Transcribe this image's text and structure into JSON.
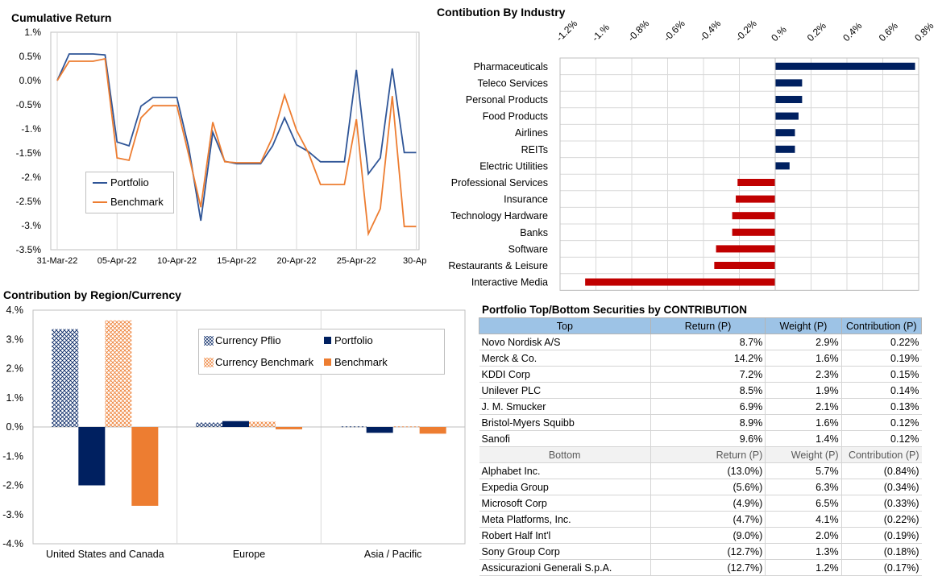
{
  "cumulative": {
    "title": "Cumulative Return",
    "chart_data": {
      "type": "line",
      "title": "Cumulative Return",
      "x_tick_labels": [
        "31-Mar-22",
        "05-Apr-22",
        "10-Apr-22",
        "15-Apr-22",
        "20-Apr-22",
        "25-Apr-22",
        "30-Apr"
      ],
      "y_tick_labels": [
        "1.%",
        "0.5%",
        "0.0%",
        "-0.5%",
        "-1.%",
        "-1.5%",
        "-2.%",
        "-2.5%",
        "-3.%",
        "-3.5%"
      ],
      "ylim": [
        -3.5,
        1.0
      ],
      "x_days": [
        0,
        1,
        2,
        3,
        4,
        5,
        6,
        7,
        8,
        9,
        10,
        11,
        12,
        13,
        14,
        15,
        16,
        17,
        18,
        19,
        20,
        21,
        22,
        23,
        24,
        25,
        26,
        27,
        28,
        29,
        30
      ],
      "series": [
        {
          "name": "Portfolio",
          "color": "#2f5597",
          "values": [
            0.0,
            0.55,
            0.55,
            0.55,
            0.53,
            -1.27,
            -1.35,
            -0.53,
            -0.35,
            -0.35,
            -0.35,
            -1.4,
            -2.9,
            -1.07,
            -1.67,
            -1.72,
            -1.72,
            -1.72,
            -1.35,
            -0.77,
            -1.33,
            -1.47,
            -1.68,
            -1.68,
            -1.68,
            0.22,
            -1.93,
            -1.6,
            0.25,
            -1.49,
            -1.49
          ]
        },
        {
          "name": "Benchmark",
          "color": "#ed7d31",
          "values": [
            0.0,
            0.4,
            0.4,
            0.4,
            0.45,
            -1.6,
            -1.65,
            -0.77,
            -0.52,
            -0.52,
            -0.52,
            -1.55,
            -2.62,
            -0.86,
            -1.68,
            -1.7,
            -1.7,
            -1.7,
            -1.17,
            -0.3,
            -1.03,
            -1.5,
            -2.15,
            -2.15,
            -2.15,
            -0.8,
            -3.17,
            -2.65,
            -0.32,
            -3.02,
            -3.02
          ]
        }
      ],
      "legend": [
        "Portfolio",
        "Benchmark"
      ],
      "legend_position": "left-center"
    }
  },
  "industry": {
    "title": "Contibution By Industry",
    "chart_data": {
      "type": "bar",
      "orientation": "horizontal",
      "title": "Contibution By Industry",
      "x_tick_labels": [
        "-1.2%",
        "-1.%",
        "-0.8%",
        "-0.6%",
        "-0.4%",
        "-0.2%",
        "0.%",
        "0.2%",
        "0.4%",
        "0.6%",
        "0.8%"
      ],
      "xlim": [
        -1.2,
        0.8
      ],
      "categories": [
        "Pharmaceuticals",
        "Teleco Services",
        "Personal Products",
        "Food Products",
        "Airlines",
        "REITs",
        "Electric Utilities",
        "Professional Services",
        "Insurance",
        "Technology Hardware",
        "Banks",
        "Software",
        "Restaurants & Leisure",
        "Interactive Media"
      ],
      "values": [
        0.78,
        0.15,
        0.15,
        0.13,
        0.11,
        0.11,
        0.08,
        -0.21,
        -0.22,
        -0.24,
        -0.24,
        -0.33,
        -0.34,
        -1.06
      ],
      "positive_color": "#002060",
      "negative_color": "#c00000",
      "gridlines": true
    }
  },
  "region": {
    "title": "Contribution by Region/Currency",
    "chart_data": {
      "type": "bar",
      "title": "Contribution by Region/Currency",
      "categories": [
        "United States and Canada",
        "Europe",
        "Asia / Pacific"
      ],
      "y_tick_labels": [
        "4.%",
        "3.%",
        "2.%",
        "1.%",
        "0.%",
        "-1.%",
        "-2.%",
        "-3.%",
        "-4.%"
      ],
      "ylim": [
        -4,
        4
      ],
      "series": [
        {
          "name": "Currency Pflio",
          "color": "#002060",
          "pattern": "crosshatch",
          "values": [
            3.35,
            0.15,
            0.02
          ]
        },
        {
          "name": "Portfolio",
          "color": "#002060",
          "pattern": "solid",
          "values": [
            -2.0,
            0.2,
            -0.2
          ]
        },
        {
          "name": "Currency Benchmark",
          "color": "#ed7d31",
          "pattern": "crosshatch",
          "values": [
            3.65,
            0.18,
            0.02
          ]
        },
        {
          "name": "Benchmark",
          "color": "#ed7d31",
          "pattern": "solid",
          "values": [
            -2.7,
            -0.08,
            -0.23
          ]
        }
      ],
      "legend_position": "top-center"
    }
  },
  "securities": {
    "title": "Portfolio Top/Bottom Securities by CONTRIBUTION",
    "top_headers": [
      "Top",
      "Return (P)",
      "Weight (P)",
      "Contribution (P)"
    ],
    "top_rows": [
      [
        "Novo Nordisk A/S",
        "8.7%",
        "2.9%",
        "0.22%"
      ],
      [
        "Merck & Co.",
        "14.2%",
        "1.6%",
        "0.19%"
      ],
      [
        "KDDI Corp",
        "7.2%",
        "2.3%",
        "0.15%"
      ],
      [
        "Unilever PLC",
        "8.5%",
        "1.9%",
        "0.14%"
      ],
      [
        " J. M. Smucker",
        "6.9%",
        "2.1%",
        "0.13%"
      ],
      [
        "Bristol-Myers Squibb",
        "8.9%",
        "1.6%",
        "0.12%"
      ],
      [
        "Sanofi",
        "9.6%",
        "1.4%",
        "0.12%"
      ]
    ],
    "bottom_headers": [
      "Bottom",
      "Return (P)",
      "Weight (P)",
      "Contribution (P)"
    ],
    "bottom_rows": [
      [
        "Alphabet Inc.",
        "(13.0%)",
        "5.7%",
        "(0.84%)"
      ],
      [
        "Expedia Group",
        "(5.6%)",
        "6.3%",
        "(0.34%)"
      ],
      [
        "Microsoft Corp",
        "(4.9%)",
        "6.5%",
        "(0.33%)"
      ],
      [
        "Meta Platforms, Inc.",
        "(4.7%)",
        "4.1%",
        "(0.22%)"
      ],
      [
        "Robert Half Int'l",
        "(9.0%)",
        "2.0%",
        "(0.19%)"
      ],
      [
        "Sony Group Corp",
        "(12.7%)",
        "1.3%",
        "(0.18%)"
      ],
      [
        "Assicurazioni Generali S.p.A.",
        "(12.7%)",
        "1.2%",
        "(0.17%)"
      ]
    ]
  }
}
